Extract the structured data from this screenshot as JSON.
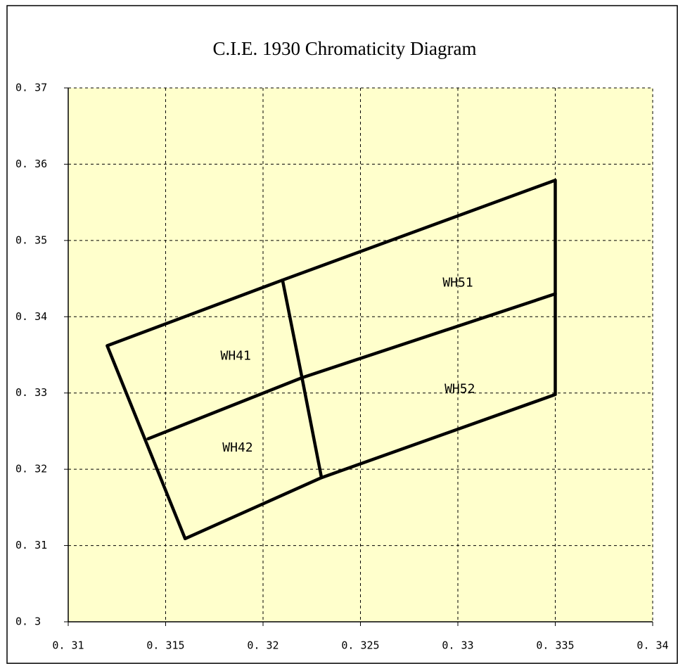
{
  "chart_data": {
    "type": "line",
    "title": "C.I.E. 1930 Chromaticity Diagram",
    "xlim": [
      0.31,
      0.34
    ],
    "ylim": [
      0.3,
      0.37
    ],
    "xticks": [
      {
        "value": 0.31,
        "label": "0. 31"
      },
      {
        "value": 0.315,
        "label": "0. 315"
      },
      {
        "value": 0.32,
        "label": "0. 32"
      },
      {
        "value": 0.325,
        "label": "0. 325"
      },
      {
        "value": 0.33,
        "label": "0. 33"
      },
      {
        "value": 0.335,
        "label": "0. 335"
      },
      {
        "value": 0.34,
        "label": "0. 34"
      }
    ],
    "yticks": [
      {
        "value": 0.3,
        "label": "0. 3"
      },
      {
        "value": 0.31,
        "label": "0. 31"
      },
      {
        "value": 0.32,
        "label": "0. 32"
      },
      {
        "value": 0.33,
        "label": "0. 33"
      },
      {
        "value": 0.34,
        "label": "0. 34"
      },
      {
        "value": 0.35,
        "label": "0. 35"
      },
      {
        "value": 0.36,
        "label": "0. 36"
      },
      {
        "value": 0.37,
        "label": "0. 37"
      }
    ],
    "grid": true,
    "series": [
      {
        "color": "#000000",
        "x": [
          0.312,
          0.321,
          0.335,
          0.335,
          0.323,
          0.316,
          0.312
        ],
        "values": [
          0.3362,
          0.3448,
          0.3579,
          0.3298,
          0.3189,
          0.3109,
          0.3362
        ]
      },
      {
        "color": "#000000",
        "x": [
          0.3141,
          0.322,
          0.335
        ],
        "values": [
          0.324,
          0.332,
          0.343
        ]
      },
      {
        "color": "#000000",
        "x": [
          0.321,
          0.322,
          0.323
        ],
        "values": [
          0.3448,
          0.332,
          0.3189
        ]
      }
    ],
    "annotations": [
      {
        "text": "WH51",
        "x": 0.33,
        "y": 0.3444
      },
      {
        "text": "WH41",
        "x": 0.3186,
        "y": 0.3348
      },
      {
        "text": "WH42",
        "x": 0.3187,
        "y": 0.3228
      },
      {
        "text": "WH52",
        "x": 0.3301,
        "y": 0.3305
      }
    ]
  }
}
